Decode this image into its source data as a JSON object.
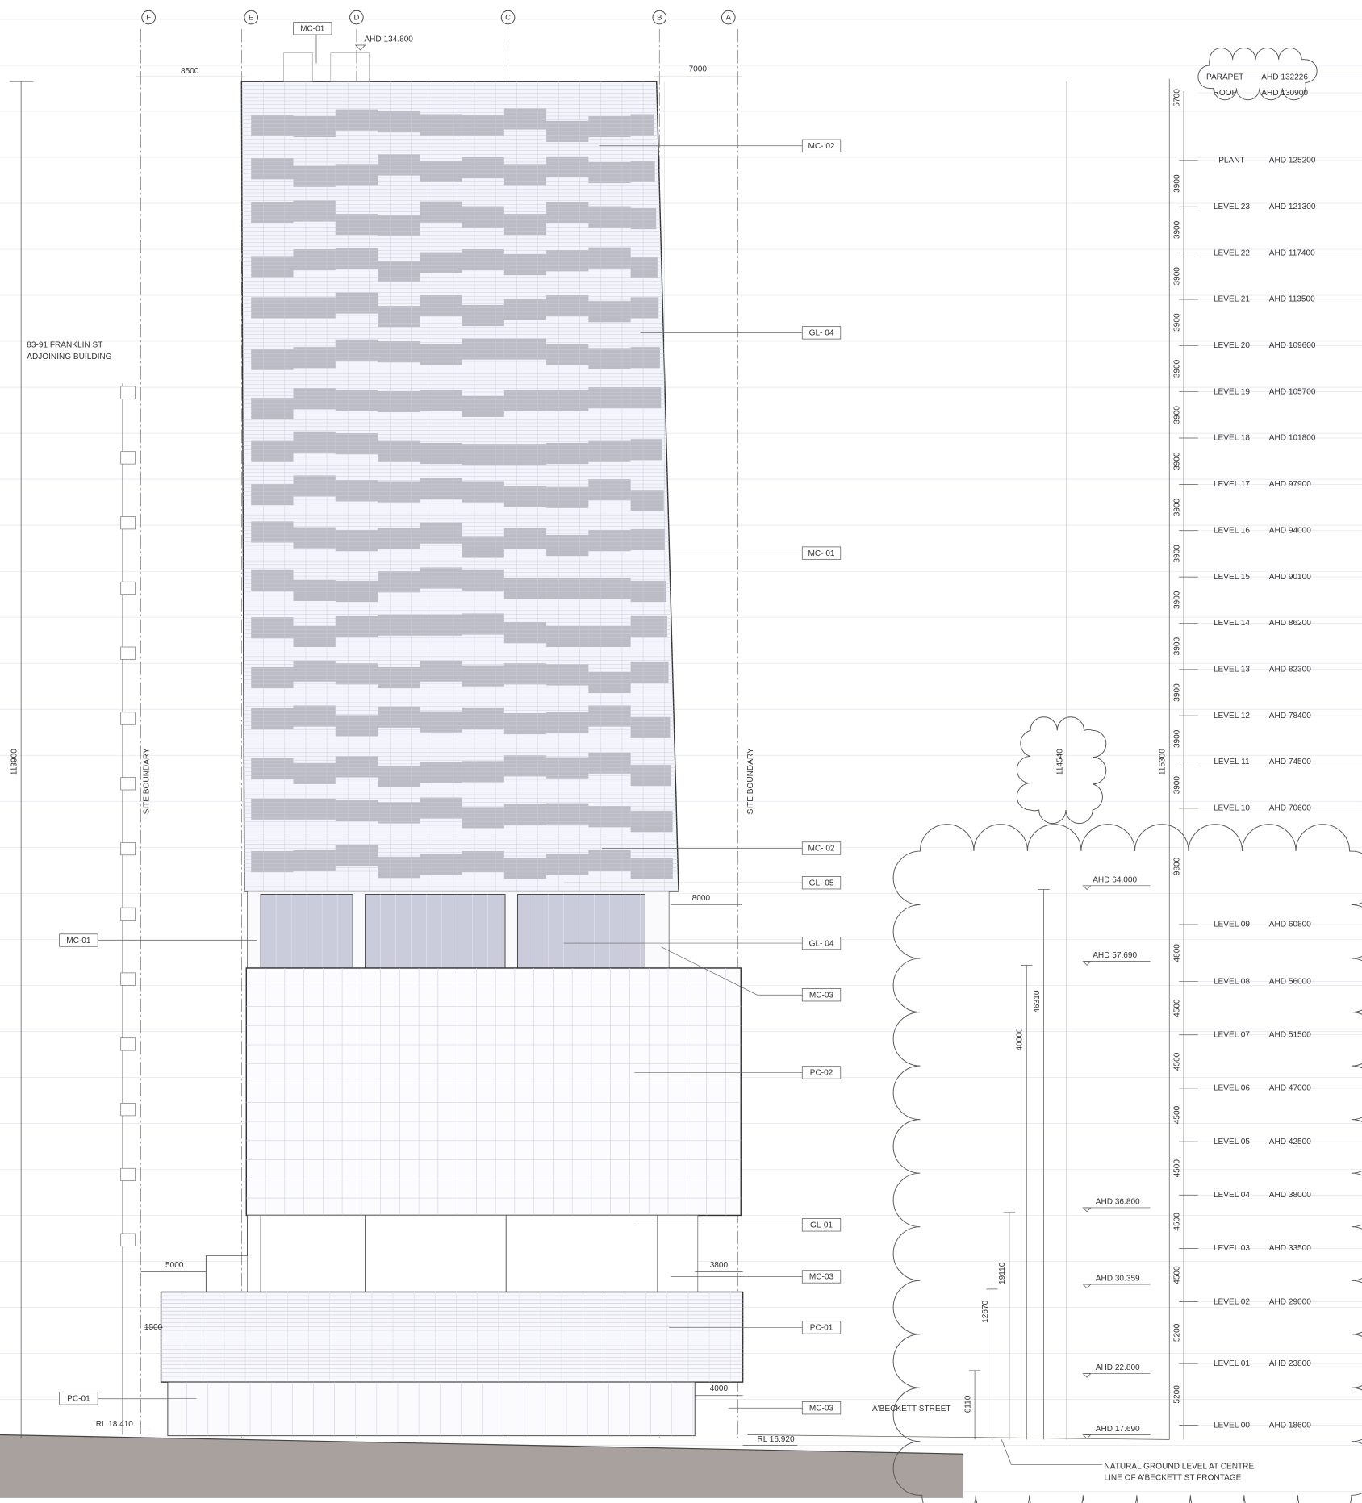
{
  "grid_labels": [
    "F",
    "E",
    "D",
    "C",
    "B",
    "A"
  ],
  "top": {
    "tag": "MC-01",
    "ahd": "AHD 134.800",
    "dim_left": "8500",
    "dim_right": "7000"
  },
  "adjoining": [
    "83-91 FRANKLIN ST",
    "ADJOINING BUILDING"
  ],
  "site_boundary": [
    "SITE BOUNDARY",
    "SITE BOUNDARY"
  ],
  "right_tags": [
    "MC- 02",
    "GL- 04",
    "MC- 01",
    "MC- 02",
    "GL- 05",
    "GL- 04",
    "MC-03",
    "PC-02",
    "GL-01",
    "MC-03",
    "PC-01",
    "MC-03"
  ],
  "left_tags": [
    "MC-01",
    "PC-01"
  ],
  "dims": [
    "8000",
    "5000",
    "3800",
    "1500",
    "4000"
  ],
  "rl": [
    "RL 18.410",
    "RL 16.920"
  ],
  "ahd_markers": [
    "AHD 64.000",
    "AHD 57.690",
    "AHD 36.800",
    "AHD 30.359",
    "AHD 22.800",
    "AHD 17.690"
  ],
  "overall_dims": [
    "113900",
    "114540",
    "115300"
  ],
  "height_dims": [
    "46310",
    "40000",
    "19110",
    "12670",
    "6110"
  ],
  "street": "A'BECKETT STREET",
  "ground_note": [
    "NATURAL GROUND LEVEL AT CENTRE",
    "LINE OF A'BECKETT ST FRONTAGE"
  ],
  "levels": [
    {
      "name": "PARAPET",
      "ahd": "AHD 132226"
    },
    {
      "name": "ROOF",
      "ahd": "AHD 130900"
    },
    {
      "name": "PLANT",
      "ahd": "AHD 125200"
    },
    {
      "name": "LEVEL 23",
      "ahd": "AHD 121300"
    },
    {
      "name": "LEVEL 22",
      "ahd": "AHD 117400"
    },
    {
      "name": "LEVEL 21",
      "ahd": "AHD 113500"
    },
    {
      "name": "LEVEL 20",
      "ahd": "AHD 109600"
    },
    {
      "name": "LEVEL 19",
      "ahd": "AHD 105700"
    },
    {
      "name": "LEVEL 18",
      "ahd": "AHD 101800"
    },
    {
      "name": "LEVEL 17",
      "ahd": "AHD 97900"
    },
    {
      "name": "LEVEL 16",
      "ahd": "AHD 94000"
    },
    {
      "name": "LEVEL 15",
      "ahd": "AHD 90100"
    },
    {
      "name": "LEVEL 14",
      "ahd": "AHD 86200"
    },
    {
      "name": "LEVEL 13",
      "ahd": "AHD 82300"
    },
    {
      "name": "LEVEL 12",
      "ahd": "AHD 78400"
    },
    {
      "name": "LEVEL 11",
      "ahd": "AHD 74500"
    },
    {
      "name": "LEVEL 10",
      "ahd": "AHD 70600"
    },
    {
      "name": "LEVEL 09",
      "ahd": "AHD 60800"
    },
    {
      "name": "LEVEL 08",
      "ahd": "AHD 56000"
    },
    {
      "name": "LEVEL 07",
      "ahd": "AHD 51500"
    },
    {
      "name": "LEVEL 06",
      "ahd": "AHD 47000"
    },
    {
      "name": "LEVEL 05",
      "ahd": "AHD 42500"
    },
    {
      "name": "LEVEL 04",
      "ahd": "AHD 38000"
    },
    {
      "name": "LEVEL 03",
      "ahd": "AHD 33500"
    },
    {
      "name": "LEVEL 02",
      "ahd": "AHD 29000"
    },
    {
      "name": "LEVEL 01",
      "ahd": "AHD 23800"
    },
    {
      "name": "LEVEL 00",
      "ahd": "AHD 18600"
    }
  ],
  "level_dims": [
    "5700",
    "3900",
    "3900",
    "3900",
    "3900",
    "3900",
    "3900",
    "3900",
    "3900",
    "3900",
    "3900",
    "3900",
    "3900",
    "3900",
    "3900",
    "9800",
    "4800",
    "4500",
    "4500",
    "4500",
    "4500",
    "4500",
    "4500",
    "5200",
    "5200"
  ]
}
